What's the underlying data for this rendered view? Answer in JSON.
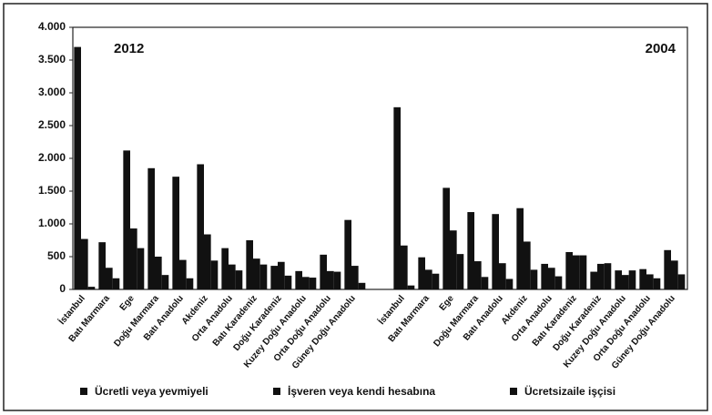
{
  "chart_data": {
    "type": "bar",
    "annotations": [
      "2012",
      "2004"
    ],
    "categories": [
      "İstanbul",
      "Batı Marmara",
      "Ege",
      "Doğu Marmara",
      "Batı Anadolu",
      "Akdeniz",
      "Orta Anadolu",
      "Batı Karadeniz",
      "Doğu Karadeniz",
      "Kuzey Doğu Anadolu",
      "Orta Doğu Anadolu",
      "Güney Doğu Anadolu",
      null,
      "İstanbul",
      "Batı Marmara",
      "Ege",
      "Doğu Marmara",
      "Batı Anadolu",
      "Akdeniz",
      "Orta Anadolu",
      "Batı Karadeniz",
      "Doğu Karadeniz",
      "Kuzey Doğu Anadolu",
      "Orta Doğu Anadolu",
      "Güney Doğu Anadolu"
    ],
    "series": [
      {
        "name": "Ücretli veya yevmiyeli",
        "color": "#111111",
        "values": [
          3700,
          720,
          2120,
          1850,
          1720,
          1910,
          630,
          750,
          360,
          280,
          530,
          1060,
          null,
          2780,
          490,
          1550,
          1180,
          1150,
          1240,
          390,
          570,
          270,
          290,
          310,
          600
        ]
      },
      {
        "name": "İşveren veya kendi hesabına",
        "color": "#111111",
        "values": [
          770,
          330,
          930,
          500,
          450,
          840,
          380,
          470,
          420,
          190,
          280,
          360,
          null,
          670,
          300,
          900,
          430,
          400,
          730,
          330,
          520,
          390,
          220,
          230,
          440
        ]
      },
      {
        "name": "Ücretsizaile işçisi",
        "color": "#111111",
        "values": [
          40,
          170,
          630,
          220,
          170,
          440,
          290,
          380,
          210,
          180,
          270,
          100,
          null,
          60,
          240,
          540,
          190,
          160,
          300,
          200,
          520,
          400,
          290,
          170,
          230
        ]
      }
    ],
    "ylim": [
      0,
      4000
    ],
    "yticks": [
      0,
      {
        "value": 500,
        "label": "500"
      },
      {
        "value": 1000,
        "label": "1.000"
      },
      {
        "value": 1500,
        "label": "1.500"
      },
      {
        "value": 2000,
        "label": "2.000"
      },
      {
        "value": 2500,
        "label": "2.500"
      },
      {
        "value": 3000,
        "label": "3.000"
      },
      {
        "value": 3500,
        "label": "3.500"
      },
      {
        "value": 4000,
        "label": "4.000"
      }
    ],
    "grid": false,
    "legend": "bottom"
  }
}
